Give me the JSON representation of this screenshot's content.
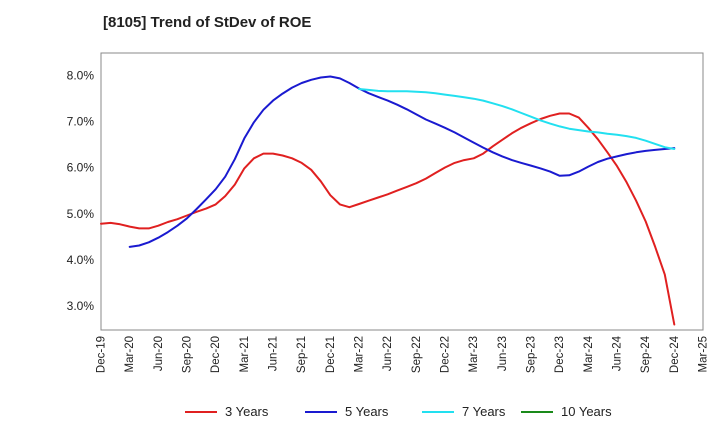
{
  "chart_data": {
    "type": "line",
    "title": "[8105]  Trend of StDev of ROE",
    "xlabel": "",
    "ylabel": "",
    "ylim": [
      2.5,
      8.5
    ],
    "y_ticks": [
      "3.0%",
      "4.0%",
      "5.0%",
      "6.0%",
      "7.0%",
      "8.0%"
    ],
    "y_tick_values": [
      3.0,
      4.0,
      5.0,
      6.0,
      7.0,
      8.0
    ],
    "x_ticks": [
      "Dec-19",
      "Mar-20",
      "Jun-20",
      "Sep-20",
      "Dec-20",
      "Mar-21",
      "Jun-21",
      "Sep-21",
      "Dec-21",
      "Mar-22",
      "Jun-22",
      "Sep-22",
      "Dec-22",
      "Mar-23",
      "Jun-23",
      "Sep-23",
      "Dec-23",
      "Mar-24",
      "Jun-24",
      "Sep-24",
      "Dec-24",
      "Mar-25"
    ],
    "grid": true,
    "legend_position": "bottom",
    "series": [
      {
        "name": "3 Years",
        "color": "#e02020",
        "points": [
          [
            "Dec-19",
            4.8
          ],
          [
            "Jan-20",
            4.82
          ],
          [
            "Feb-20",
            4.79
          ],
          [
            "Mar-20",
            4.74
          ],
          [
            "Apr-20",
            4.7
          ],
          [
            "May-20",
            4.7
          ],
          [
            "Jun-20",
            4.76
          ],
          [
            "Jul-20",
            4.84
          ],
          [
            "Aug-20",
            4.9
          ],
          [
            "Sep-20",
            4.98
          ],
          [
            "Oct-20",
            5.06
          ],
          [
            "Nov-20",
            5.13
          ],
          [
            "Dec-20",
            5.22
          ],
          [
            "Jan-21",
            5.4
          ],
          [
            "Feb-21",
            5.65
          ],
          [
            "Mar-21",
            6.0
          ],
          [
            "Apr-21",
            6.22
          ],
          [
            "May-21",
            6.32
          ],
          [
            "Jun-21",
            6.32
          ],
          [
            "Jul-21",
            6.28
          ],
          [
            "Aug-21",
            6.22
          ],
          [
            "Sep-21",
            6.12
          ],
          [
            "Oct-21",
            5.97
          ],
          [
            "Nov-21",
            5.72
          ],
          [
            "Dec-21",
            5.42
          ],
          [
            "Jan-22",
            5.22
          ],
          [
            "Feb-22",
            5.16
          ],
          [
            "Mar-22",
            5.23
          ],
          [
            "Apr-22",
            5.3
          ],
          [
            "May-22",
            5.37
          ],
          [
            "Jun-22",
            5.44
          ],
          [
            "Jul-22",
            5.52
          ],
          [
            "Aug-22",
            5.6
          ],
          [
            "Sep-22",
            5.68
          ],
          [
            "Oct-22",
            5.78
          ],
          [
            "Nov-22",
            5.9
          ],
          [
            "Dec-22",
            6.02
          ],
          [
            "Jan-23",
            6.12
          ],
          [
            "Feb-23",
            6.18
          ],
          [
            "Mar-23",
            6.22
          ],
          [
            "Apr-23",
            6.32
          ],
          [
            "May-23",
            6.48
          ],
          [
            "Jun-23",
            6.62
          ],
          [
            "Jul-23",
            6.76
          ],
          [
            "Aug-23",
            6.88
          ],
          [
            "Sep-23",
            6.98
          ],
          [
            "Oct-23",
            7.07
          ],
          [
            "Nov-23",
            7.14
          ],
          [
            "Dec-23",
            7.19
          ],
          [
            "Jan-24",
            7.19
          ],
          [
            "Feb-24",
            7.1
          ],
          [
            "Mar-24",
            6.88
          ],
          [
            "Apr-24",
            6.63
          ],
          [
            "May-24",
            6.35
          ],
          [
            "Jun-24",
            6.05
          ],
          [
            "Jul-24",
            5.7
          ],
          [
            "Aug-24",
            5.3
          ],
          [
            "Sep-24",
            4.85
          ],
          [
            "Oct-24",
            4.3
          ],
          [
            "Nov-24",
            3.7
          ],
          [
            "Dec-24",
            2.62
          ]
        ]
      },
      {
        "name": "5 Years",
        "color": "#1a1ad0",
        "points": [
          [
            "Mar-20",
            4.3
          ],
          [
            "Apr-20",
            4.33
          ],
          [
            "May-20",
            4.4
          ],
          [
            "Jun-20",
            4.5
          ],
          [
            "Jul-20",
            4.62
          ],
          [
            "Aug-20",
            4.76
          ],
          [
            "Sep-20",
            4.92
          ],
          [
            "Oct-20",
            5.12
          ],
          [
            "Nov-20",
            5.33
          ],
          [
            "Dec-20",
            5.55
          ],
          [
            "Jan-21",
            5.82
          ],
          [
            "Feb-21",
            6.2
          ],
          [
            "Mar-21",
            6.65
          ],
          [
            "Apr-21",
            7.0
          ],
          [
            "May-21",
            7.27
          ],
          [
            "Jun-21",
            7.47
          ],
          [
            "Jul-21",
            7.62
          ],
          [
            "Aug-21",
            7.75
          ],
          [
            "Sep-21",
            7.85
          ],
          [
            "Oct-21",
            7.92
          ],
          [
            "Nov-21",
            7.97
          ],
          [
            "Dec-21",
            7.99
          ],
          [
            "Jan-22",
            7.95
          ],
          [
            "Feb-22",
            7.85
          ],
          [
            "Mar-22",
            7.73
          ],
          [
            "Apr-22",
            7.63
          ],
          [
            "May-22",
            7.55
          ],
          [
            "Jun-22",
            7.47
          ],
          [
            "Jul-22",
            7.38
          ],
          [
            "Aug-22",
            7.28
          ],
          [
            "Sep-22",
            7.17
          ],
          [
            "Oct-22",
            7.06
          ],
          [
            "Nov-22",
            6.97
          ],
          [
            "Dec-22",
            6.88
          ],
          [
            "Jan-23",
            6.78
          ],
          [
            "Feb-23",
            6.67
          ],
          [
            "Mar-23",
            6.56
          ],
          [
            "Apr-23",
            6.45
          ],
          [
            "May-23",
            6.35
          ],
          [
            "Jun-23",
            6.26
          ],
          [
            "Jul-23",
            6.18
          ],
          [
            "Aug-23",
            6.12
          ],
          [
            "Sep-23",
            6.06
          ],
          [
            "Oct-23",
            6.0
          ],
          [
            "Nov-23",
            5.93
          ],
          [
            "Dec-23",
            5.84
          ],
          [
            "Jan-24",
            5.85
          ],
          [
            "Feb-24",
            5.93
          ],
          [
            "Mar-24",
            6.04
          ],
          [
            "Apr-24",
            6.14
          ],
          [
            "May-24",
            6.21
          ],
          [
            "Jun-24",
            6.26
          ],
          [
            "Jul-24",
            6.31
          ],
          [
            "Aug-24",
            6.35
          ],
          [
            "Sep-24",
            6.38
          ],
          [
            "Oct-24",
            6.4
          ],
          [
            "Nov-24",
            6.42
          ],
          [
            "Dec-24",
            6.44
          ]
        ]
      },
      {
        "name": "7 Years",
        "color": "#22e0f0",
        "points": [
          [
            "Mar-22",
            7.72
          ],
          [
            "Apr-22",
            7.7
          ],
          [
            "May-22",
            7.68
          ],
          [
            "Jun-22",
            7.67
          ],
          [
            "Jul-22",
            7.67
          ],
          [
            "Aug-22",
            7.67
          ],
          [
            "Sep-22",
            7.66
          ],
          [
            "Oct-22",
            7.65
          ],
          [
            "Nov-22",
            7.63
          ],
          [
            "Dec-22",
            7.6
          ],
          [
            "Jan-23",
            7.57
          ],
          [
            "Feb-23",
            7.54
          ],
          [
            "Mar-23",
            7.51
          ],
          [
            "Apr-23",
            7.47
          ],
          [
            "May-23",
            7.41
          ],
          [
            "Jun-23",
            7.35
          ],
          [
            "Jul-23",
            7.28
          ],
          [
            "Aug-23",
            7.2
          ],
          [
            "Sep-23",
            7.12
          ],
          [
            "Oct-23",
            7.04
          ],
          [
            "Nov-23",
            6.97
          ],
          [
            "Dec-23",
            6.91
          ],
          [
            "Jan-24",
            6.86
          ],
          [
            "Feb-24",
            6.83
          ],
          [
            "Mar-24",
            6.8
          ],
          [
            "Apr-24",
            6.78
          ],
          [
            "May-24",
            6.75
          ],
          [
            "Jun-24",
            6.73
          ],
          [
            "Jul-24",
            6.7
          ],
          [
            "Aug-24",
            6.66
          ],
          [
            "Sep-24",
            6.6
          ],
          [
            "Oct-24",
            6.53
          ],
          [
            "Nov-24",
            6.46
          ],
          [
            "Dec-24",
            6.42
          ]
        ]
      },
      {
        "name": "10 Years",
        "color": "#1a8a1a",
        "points": []
      }
    ]
  }
}
